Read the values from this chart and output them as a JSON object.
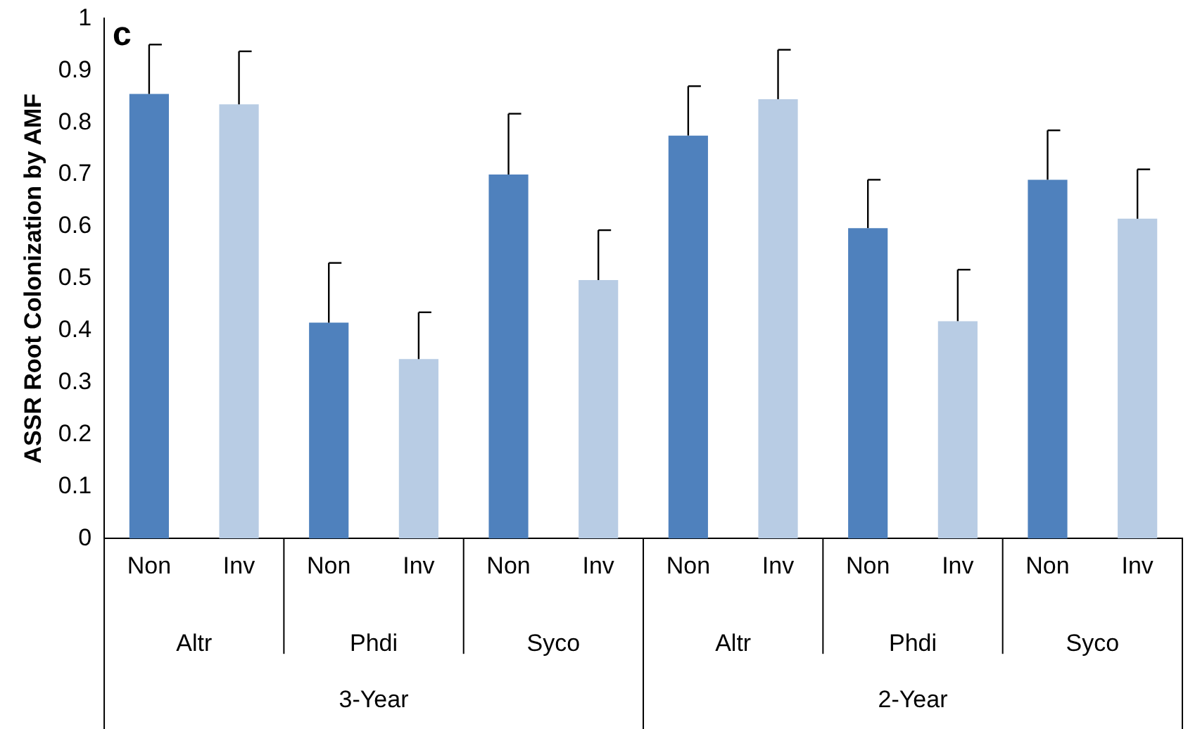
{
  "chart_data": {
    "type": "bar",
    "ylabel": "ASSR Root Colonization by AMF",
    "categories": [
      "Non",
      "Inv",
      "Non",
      "Inv",
      "Non",
      "Inv",
      "Non",
      "Inv",
      "Non",
      "Inv",
      "Non",
      "Inv"
    ],
    "values": [
      0.855,
      0.835,
      0.415,
      0.345,
      0.7,
      0.497,
      0.775,
      0.845,
      0.597,
      0.418,
      0.69,
      0.615
    ],
    "errors": [
      [
        0.855,
        0.95
      ],
      [
        0.835,
        0.937
      ],
      [
        0.415,
        0.53
      ],
      [
        0.345,
        0.435
      ],
      [
        0.7,
        0.817
      ],
      [
        0.497,
        0.593
      ],
      [
        0.775,
        0.87
      ],
      [
        0.845,
        0.94
      ],
      [
        0.597,
        0.69
      ],
      [
        0.418,
        0.517
      ],
      [
        0.69,
        0.785
      ],
      [
        0.615,
        0.71
      ]
    ],
    "colors": [
      "#4f81bd",
      "#b8cce4",
      "#4f81bd",
      "#b8cce4",
      "#4f81bd",
      "#b8cce4",
      "#4f81bd",
      "#b8cce4",
      "#4f81bd",
      "#b8cce4",
      "#4f81bd",
      "#b8cce4"
    ],
    "ylim": [
      0,
      1
    ],
    "yticks": [
      0,
      0.1,
      0.2,
      0.3,
      0.4,
      0.5,
      0.6,
      0.7,
      0.8,
      0.9,
      1
    ],
    "grid": false,
    "legend": false,
    "annotations": [
      "c",
      "Altr",
      "Phdi",
      "Syco",
      "Altr",
      "Phdi",
      "Syco",
      "3-Year",
      "2-Year"
    ]
  }
}
